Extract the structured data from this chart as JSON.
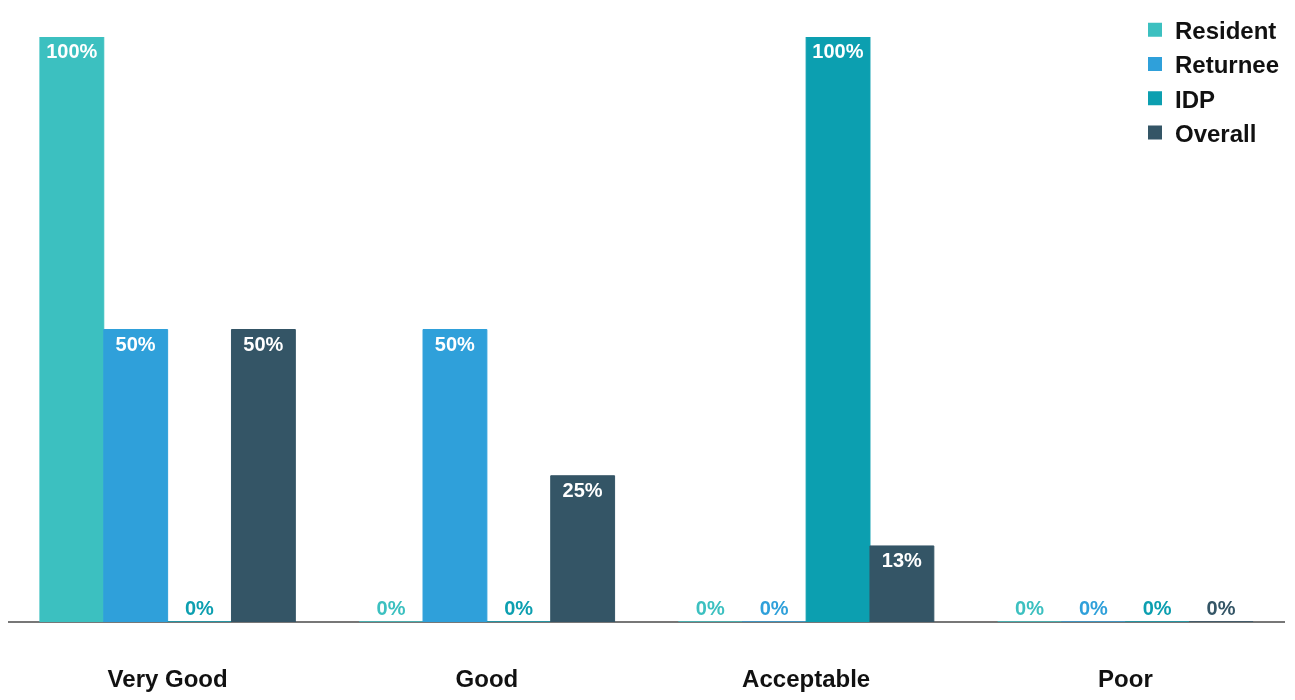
{
  "chart_data": {
    "type": "bar",
    "categories": [
      "Very Good",
      "Good",
      "Acceptable",
      "Poor"
    ],
    "series": [
      {
        "name": "Resident",
        "color": "#3cc0c0",
        "values": [
          100,
          0,
          0,
          0
        ],
        "value_labels": [
          "100%",
          "0%",
          "0%",
          "0%"
        ]
      },
      {
        "name": "Returnee",
        "color": "#2fa0da",
        "values": [
          50,
          50,
          0,
          0
        ],
        "value_labels": [
          "50%",
          "50%",
          "0%",
          "0%"
        ]
      },
      {
        "name": "IDP",
        "color": "#0c9fb0",
        "values": [
          0,
          0,
          100,
          0
        ],
        "value_labels": [
          "0%",
          "0%",
          "100%",
          "0%"
        ]
      },
      {
        "name": "Overall",
        "color": "#345566",
        "values": [
          50,
          25,
          13,
          0
        ],
        "value_labels": [
          "50%",
          "25%",
          "13%",
          "0%"
        ]
      }
    ],
    "grid": false,
    "legend": "top right"
  }
}
